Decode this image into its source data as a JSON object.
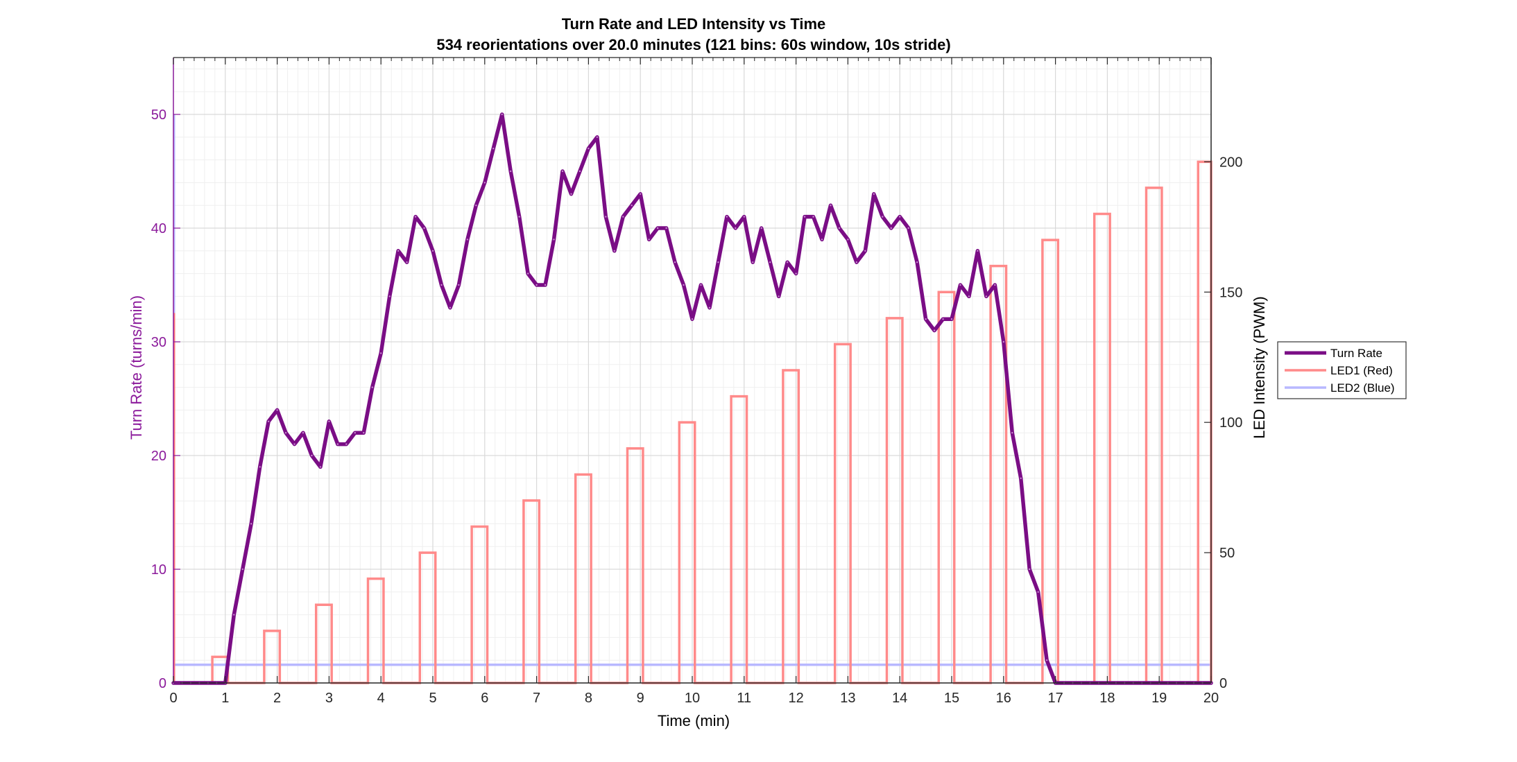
{
  "chart_data": {
    "type": "line",
    "title": "Turn Rate and LED Intensity vs Time",
    "subtitle": "534 reorientations over 20.0 minutes (121 bins: 60s window, 10s stride)",
    "xlabel": "Time (min)",
    "ylabel_left": "Turn Rate (turns/min)",
    "ylabel_right": "LED Intensity (PWM)",
    "xlim": [
      0,
      20
    ],
    "ylim_left": [
      0,
      55
    ],
    "ylim_right": [
      0,
      240
    ],
    "x_ticks": [
      "0",
      "1",
      "2",
      "3",
      "4",
      "5",
      "6",
      "7",
      "8",
      "9",
      "10",
      "11",
      "12",
      "13",
      "14",
      "15",
      "16",
      "17",
      "18",
      "19",
      "20"
    ],
    "y_left_ticks": [
      "0",
      "10",
      "20",
      "30",
      "40",
      "50"
    ],
    "y_right_ticks": [
      "0",
      "50",
      "100",
      "150",
      "200"
    ],
    "grid": true,
    "legend_position": "right-outside",
    "colors": {
      "turn_rate": "#7a0d85",
      "led1": "#ff8a8a",
      "led2": "#b8b8ff",
      "left_axis": "#8b1a9b",
      "grid": "#d9d9d9"
    },
    "series": [
      {
        "name": "Turn Rate",
        "axis": "left",
        "x": [
          0,
          0.1667,
          0.3333,
          0.5,
          0.6667,
          0.8333,
          1,
          1.1667,
          1.3333,
          1.5,
          1.6667,
          1.8333,
          2,
          2.1667,
          2.3333,
          2.5,
          2.6667,
          2.8333,
          3,
          3.1667,
          3.3333,
          3.5,
          3.6667,
          3.8333,
          4,
          4.1667,
          4.3333,
          4.5,
          4.6667,
          4.8333,
          5,
          5.1667,
          5.3333,
          5.5,
          5.6667,
          5.8333,
          6,
          6.1667,
          6.3333,
          6.5,
          6.6667,
          6.8333,
          7,
          7.1667,
          7.3333,
          7.5,
          7.6667,
          7.8333,
          8,
          8.1667,
          8.3333,
          8.5,
          8.6667,
          8.8333,
          9,
          9.1667,
          9.3333,
          9.5,
          9.6667,
          9.8333,
          10,
          10.1667,
          10.3333,
          10.5,
          10.6667,
          10.8333,
          11,
          11.1667,
          11.3333,
          11.5,
          11.6667,
          11.8333,
          12,
          12.1667,
          12.3333,
          12.5,
          12.6667,
          12.8333,
          13,
          13.1667,
          13.3333,
          13.5,
          13.6667,
          13.8333,
          14,
          14.1667,
          14.3333,
          14.5,
          14.6667,
          14.8333,
          15,
          15.1667,
          15.3333,
          15.5,
          15.6667,
          15.8333,
          16,
          16.1667,
          16.3333,
          16.5,
          16.6667,
          16.8333,
          17,
          17.1667,
          17.3333,
          17.5,
          17.6667,
          17.8333,
          18,
          18.1667,
          18.3333,
          18.5,
          18.6667,
          18.8333,
          19,
          19.1667,
          19.3333,
          19.5,
          19.6667,
          19.8333,
          20
        ],
        "y": [
          0,
          0,
          0,
          0,
          0,
          0,
          0,
          6,
          10,
          14,
          19,
          23,
          24,
          22,
          21,
          22,
          20,
          19,
          23,
          21,
          21,
          22,
          22,
          26,
          29,
          34,
          38,
          37,
          41,
          40,
          38,
          35,
          33,
          35,
          39,
          42,
          44,
          47,
          50,
          45,
          41,
          36,
          35,
          35,
          39,
          45,
          43,
          45,
          47,
          48,
          41,
          38,
          41,
          42,
          43,
          39,
          40,
          40,
          37,
          35,
          32,
          35,
          33,
          37,
          41,
          40,
          41,
          37,
          40,
          37,
          34,
          37,
          36,
          41,
          41,
          39,
          42,
          40,
          39,
          37,
          38,
          43,
          41,
          40,
          41,
          40,
          37,
          32,
          31,
          32,
          32,
          35,
          34,
          38,
          34,
          35,
          30,
          22,
          18,
          10,
          8,
          2,
          0,
          0,
          0,
          0,
          0,
          0,
          0,
          0,
          0,
          0,
          0,
          0,
          0,
          0,
          0,
          0,
          0,
          0,
          0
        ]
      },
      {
        "name": "LED1 (Red)",
        "axis": "right",
        "on_periods": [
          [
            0.75,
            1.05
          ],
          [
            1.75,
            2.05
          ],
          [
            2.75,
            3.05
          ],
          [
            3.75,
            4.05
          ],
          [
            4.75,
            5.05
          ],
          [
            5.75,
            6.05
          ],
          [
            6.75,
            7.05
          ],
          [
            7.75,
            8.05
          ],
          [
            8.75,
            9.05
          ],
          [
            9.75,
            10.05
          ],
          [
            10.75,
            11.05
          ],
          [
            11.75,
            12.05
          ],
          [
            12.75,
            13.05
          ],
          [
            13.75,
            14.05
          ],
          [
            14.75,
            15.05
          ],
          [
            15.75,
            16.05
          ],
          [
            16.75,
            17.05
          ],
          [
            17.75,
            18.05
          ],
          [
            18.75,
            19.05
          ],
          [
            19.75,
            20
          ]
        ],
        "values": [
          10,
          20,
          30,
          40,
          50,
          60,
          70,
          80,
          90,
          100,
          110,
          120,
          130,
          140,
          150,
          160,
          170,
          180,
          190,
          200
        ]
      },
      {
        "name": "LED2 (Blue)",
        "axis": "right",
        "x": [
          0,
          20
        ],
        "y": [
          7,
          7
        ]
      }
    ]
  }
}
